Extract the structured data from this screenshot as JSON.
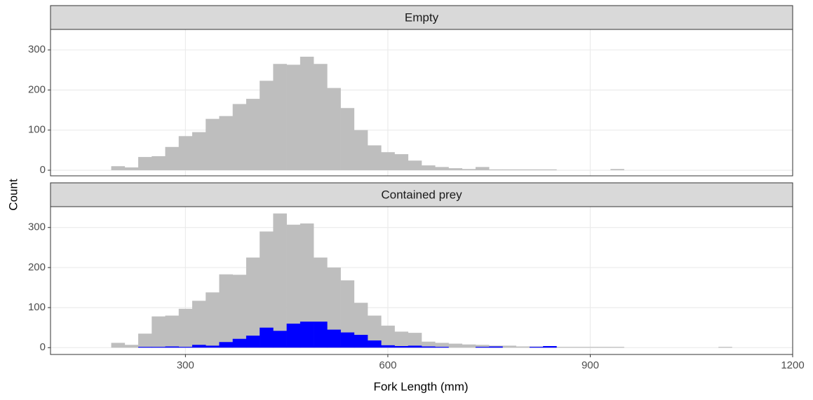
{
  "xlabel": "Fork Length (mm)",
  "ylabel": "Count",
  "chart_data": [
    {
      "type": "histogram",
      "title": "Empty",
      "bins": [
        190,
        210,
        230,
        250,
        270,
        290,
        310,
        330,
        350,
        370,
        390,
        410,
        430,
        450,
        470,
        490,
        510,
        530,
        550,
        570,
        590,
        610,
        630,
        650,
        670,
        690,
        710,
        730,
        750,
        770,
        790,
        810,
        830,
        850,
        870,
        890,
        910,
        930,
        950
      ],
      "series": [
        {
          "color": "#bebebe",
          "values": [
            10,
            7,
            33,
            35,
            58,
            85,
            95,
            128,
            135,
            165,
            178,
            223,
            265,
            263,
            283,
            265,
            205,
            155,
            100,
            62,
            45,
            40,
            24,
            12,
            8,
            5,
            3,
            8,
            2,
            2,
            2,
            2,
            2,
            0,
            0,
            0,
            0,
            3
          ]
        }
      ],
      "xlim": [
        100,
        1200
      ],
      "xticks": [
        300,
        600,
        900,
        1200
      ],
      "ylim": [
        -14,
        351
      ],
      "yticks": [
        0,
        100,
        200,
        300
      ],
      "grid": true
    },
    {
      "type": "histogram",
      "title": "Contained prey",
      "bins": [
        190,
        210,
        230,
        250,
        270,
        290,
        310,
        330,
        350,
        370,
        390,
        410,
        430,
        450,
        470,
        490,
        510,
        530,
        550,
        570,
        590,
        610,
        630,
        650,
        670,
        690,
        710,
        730,
        750,
        770,
        790,
        810,
        830,
        850,
        870,
        890,
        910,
        930,
        950,
        970,
        990,
        1010,
        1030,
        1050,
        1070,
        1090,
        1110
      ],
      "series": [
        {
          "color": "#bebebe",
          "values": [
            12,
            7,
            35,
            78,
            80,
            97,
            117,
            138,
            183,
            182,
            225,
            290,
            335,
            307,
            310,
            225,
            200,
            168,
            112,
            80,
            55,
            40,
            37,
            15,
            12,
            10,
            8,
            7,
            5,
            5,
            3,
            3,
            2,
            2,
            2,
            2,
            2,
            2,
            0,
            0,
            0,
            0,
            0,
            0,
            0,
            2
          ]
        },
        {
          "color": "#0000ff",
          "values": [
            0,
            0,
            2,
            2,
            3,
            2,
            7,
            5,
            14,
            22,
            30,
            50,
            42,
            60,
            65,
            65,
            45,
            38,
            32,
            18,
            6,
            4,
            5,
            3,
            2,
            0,
            0,
            2,
            3,
            0,
            0,
            2,
            4,
            0,
            0,
            0,
            0,
            0,
            0,
            0,
            0,
            0,
            0,
            0,
            0,
            0
          ]
        }
      ],
      "xlim": [
        100,
        1200
      ],
      "xticks": [
        300,
        600,
        900,
        1200
      ],
      "ylim": [
        -17,
        352
      ],
      "yticks": [
        0,
        100,
        200,
        300
      ],
      "grid": true
    }
  ]
}
